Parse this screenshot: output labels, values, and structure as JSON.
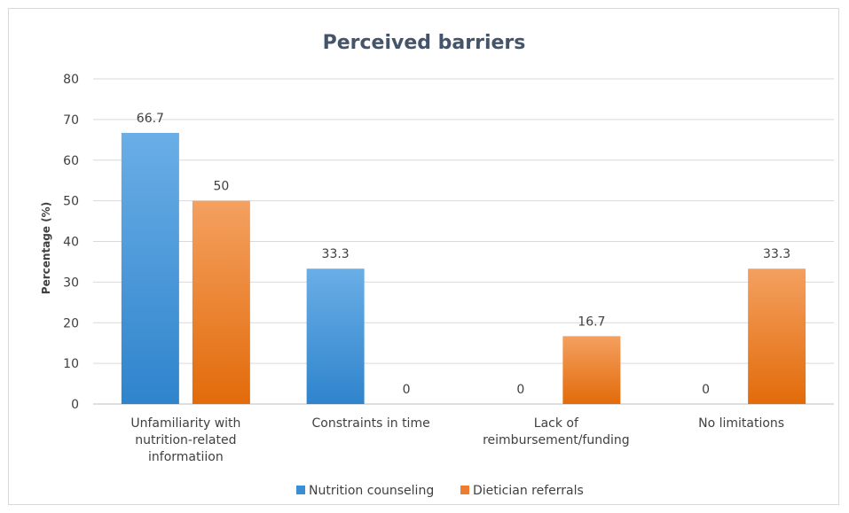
{
  "chart_data": {
    "type": "bar",
    "title": "Perceived barriers",
    "xlabel": "",
    "ylabel": "Percentage (%)",
    "ylim": [
      0,
      80
    ],
    "yticks": [
      0,
      10,
      20,
      30,
      40,
      50,
      60,
      70,
      80
    ],
    "grid": true,
    "legend": "bottom",
    "categories": [
      [
        "Unfamiliarity with",
        "nutrition-related",
        "informatiion"
      ],
      [
        "Constraints in time"
      ],
      [
        "Lack of",
        "reimbursement/funding"
      ],
      [
        "No limitations"
      ]
    ],
    "series": [
      {
        "name": "Nutrition counseling",
        "values": [
          66.7,
          33.3,
          0,
          0
        ],
        "color": "#3a8fd4",
        "label_texts": [
          "66.7",
          "33.3",
          "0",
          "0"
        ]
      },
      {
        "name": "Dietician referrals",
        "values": [
          50,
          0,
          16.7,
          33.3
        ],
        "color": "#ed7d31",
        "label_texts": [
          "50",
          "0",
          "16.7",
          "33.3"
        ]
      }
    ]
  }
}
